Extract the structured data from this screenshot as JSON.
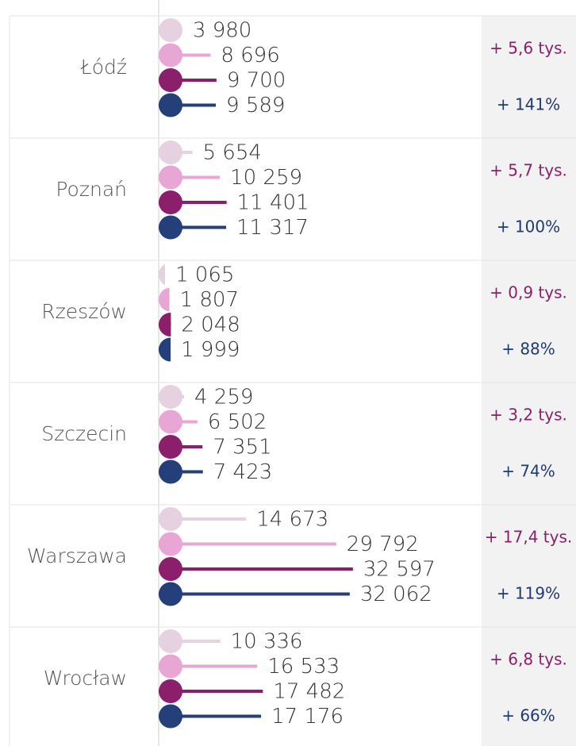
{
  "chart_data": {
    "type": "lollipop",
    "categories": [
      "Łódź",
      "Poznań",
      "Rzeszów",
      "Szczecin",
      "Warszawa",
      "Wrocław"
    ],
    "series": [
      {
        "color": "#e6d1e0",
        "values": [
          3980,
          5654,
          1065,
          4259,
          14673,
          10336
        ]
      },
      {
        "color": "#e8a6d4",
        "values": [
          8696,
          10259,
          1807,
          6502,
          29792,
          16533
        ]
      },
      {
        "color": "#8b1f6b",
        "values": [
          9700,
          11401,
          2048,
          7351,
          32597,
          17482
        ]
      },
      {
        "color": "#253f7b",
        "values": [
          9589,
          11317,
          1999,
          7423,
          32062,
          17176
        ]
      }
    ],
    "value_labels": [
      [
        "3 980",
        "5 654",
        "1 065",
        "4 259",
        "14 673",
        "10 336"
      ],
      [
        "8 696",
        "10 259",
        "1 807",
        "6 502",
        "29 792",
        "16 533"
      ],
      [
        "9 700",
        "11 401",
        "2 048",
        "7 351",
        "32 597",
        "17 482"
      ],
      [
        "9 589",
        "11 317",
        "1 999",
        "7 423",
        "32 062",
        "17 176"
      ]
    ],
    "change_labels": [
      "+ 5,6 tys.",
      "+ 5,7 tys.",
      "+ 0,9 tys.",
      "+ 3,2 tys.",
      "+ 17,4 tys.",
      "+ 6,8 tys."
    ],
    "percent_labels": [
      "+ 141%",
      "+ 100%",
      "+ 88%",
      "+ 74%",
      "+ 119%",
      "+ 66%"
    ],
    "xlim": [
      0,
      43000
    ]
  }
}
